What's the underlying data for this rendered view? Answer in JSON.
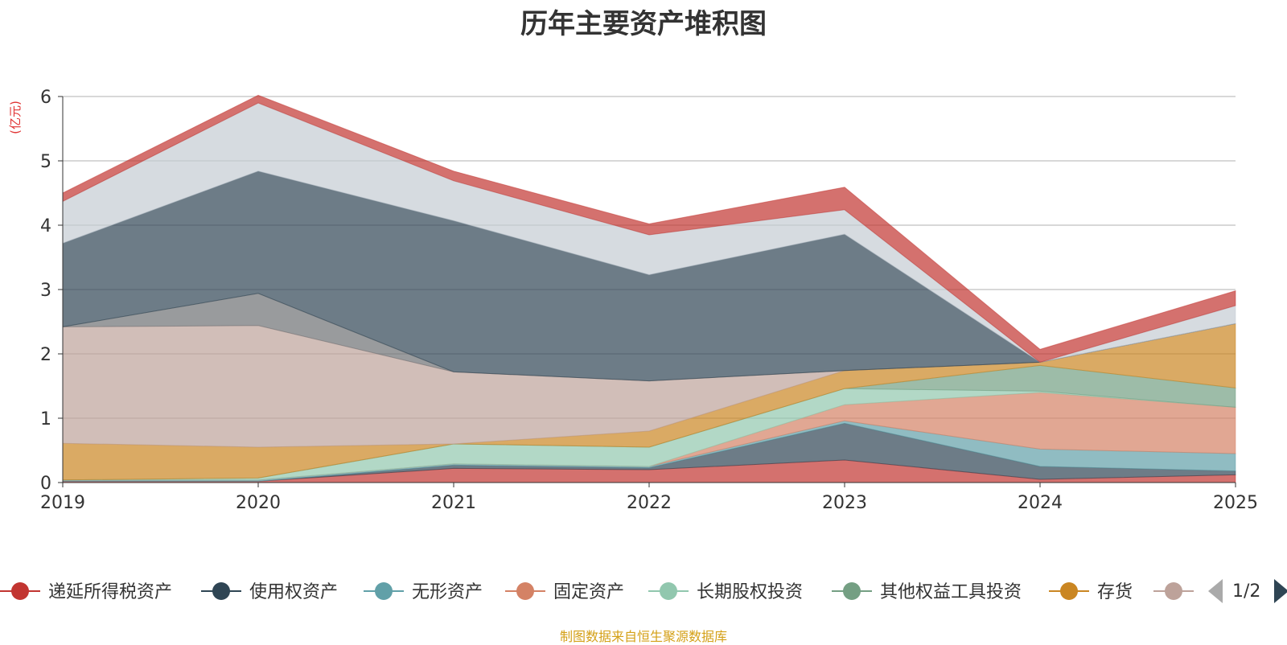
{
  "chart_data": {
    "type": "area",
    "title": "历年主要资产堆积图",
    "ylabel": "(亿元)",
    "xlabel": "",
    "ylim": [
      0,
      6
    ],
    "yticks": [
      0,
      1,
      2,
      3,
      4,
      5,
      6
    ],
    "categories": [
      "2019",
      "2020",
      "2021",
      "2022",
      "2023",
      "2024",
      "2025"
    ],
    "series": [
      {
        "name": "递延所得税资产",
        "color": "#c23531",
        "values": [
          0.02,
          0.02,
          0.22,
          0.2,
          0.35,
          0.05,
          0.12
        ]
      },
      {
        "name": "使用权资产",
        "color": "#2f4554",
        "values": [
          0.0,
          0.0,
          0.05,
          0.03,
          0.57,
          0.2,
          0.06
        ]
      },
      {
        "name": "无形资产",
        "color": "#61a0a8",
        "values": [
          0.02,
          0.02,
          0.02,
          0.02,
          0.04,
          0.27,
          0.27
        ]
      },
      {
        "name": "固定资产",
        "color": "#d48265",
        "values": [
          0.0,
          0.0,
          0.0,
          0.0,
          0.25,
          0.88,
          0.72
        ]
      },
      {
        "name": "长期股权投资",
        "color": "#91c7ae",
        "values": [
          0.0,
          0.03,
          0.31,
          0.3,
          0.25,
          0.02,
          0.0
        ]
      },
      {
        "name": "其他权益工具投资",
        "color": "#749f83",
        "values": [
          0.0,
          0.0,
          0.0,
          0.0,
          0.0,
          0.4,
          0.3
        ]
      },
      {
        "name": "存货",
        "color": "#ca8622",
        "values": [
          0.57,
          0.48,
          0.0,
          0.25,
          0.28,
          0.05,
          1.0
        ]
      },
      {
        "name": "",
        "color": "#bda29a",
        "values": [
          1.81,
          1.89,
          1.12,
          0.78,
          0.0,
          0.0,
          0.0
        ]
      },
      {
        "name": "",
        "color": "#6e7074",
        "values": [
          0.0,
          0.5,
          0.0,
          0.0,
          0.0,
          0.0,
          0.0
        ]
      },
      {
        "name": "",
        "color": "#2f4554",
        "values": [
          1.3,
          1.9,
          2.35,
          1.65,
          2.12,
          0.0,
          0.0
        ]
      },
      {
        "name": "",
        "color": "#c4ccd3",
        "values": [
          0.65,
          1.06,
          0.62,
          0.62,
          0.38,
          0.0,
          0.28
        ]
      },
      {
        "name": "",
        "color": "#c23531",
        "values": [
          0.13,
          0.12,
          0.15,
          0.17,
          0.35,
          0.2,
          0.23
        ]
      }
    ]
  },
  "legend": {
    "page": "1/2"
  },
  "source": "制图数据来自恒生聚源数据库"
}
